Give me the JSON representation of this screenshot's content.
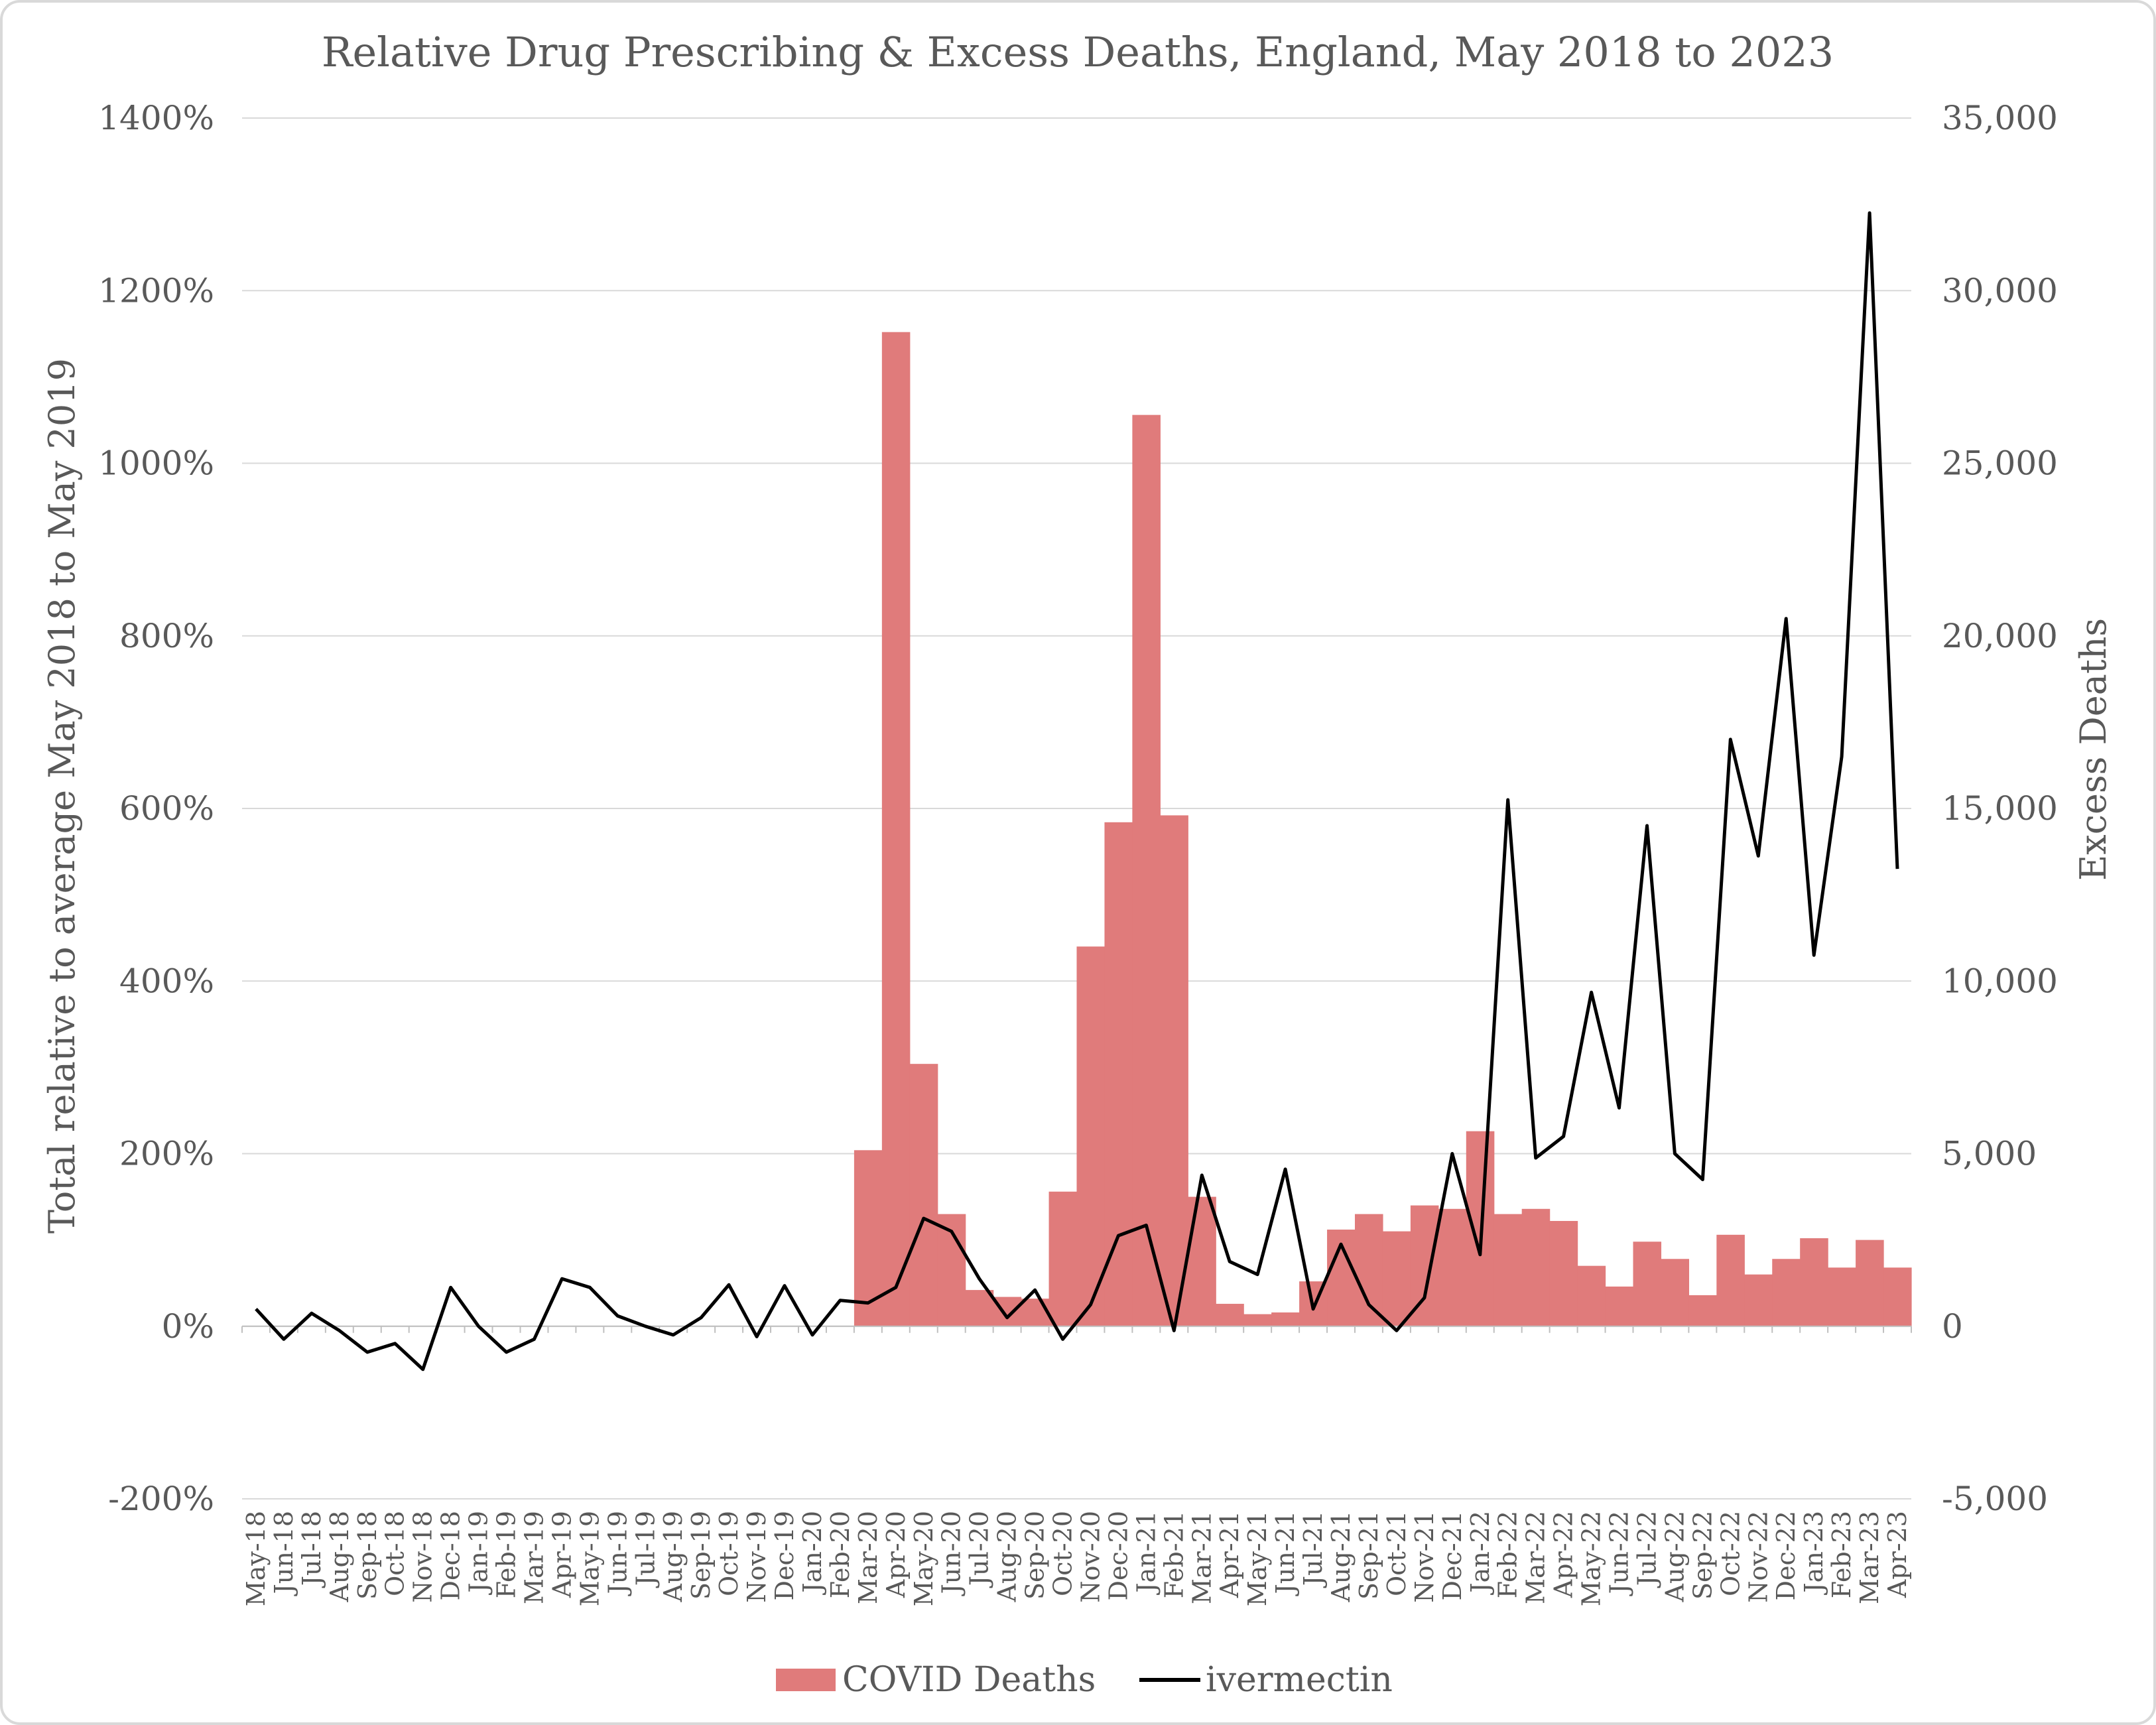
{
  "chart_data": {
    "type": "bar+line",
    "title": "Relative Drug Prescribing & Excess Deaths, England, May 2018 to 2023",
    "ylabel_left": "Total relative to average May 2018 to May 2019",
    "ylabel_right": "Excess Deaths",
    "ylim_left": [
      -200,
      1400
    ],
    "ylim_right": [
      -5000,
      35000
    ],
    "yticks_left": [
      "-200%",
      "0%",
      "200%",
      "400%",
      "600%",
      "800%",
      "1000%",
      "1200%",
      "1400%"
    ],
    "yticks_right": [
      "-5,000",
      "0",
      "5,000",
      "10,000",
      "15,000",
      "20,000",
      "25,000",
      "30,000",
      "35,000"
    ],
    "grid": true,
    "legend_position": "bottom",
    "colors": {
      "bar": "#e07b7b",
      "line": "#000000",
      "grid": "#d9d9d9",
      "text": "#595959",
      "border": "#d9d9d9"
    },
    "categories": [
      "May-18",
      "Jun-18",
      "Jul-18",
      "Aug-18",
      "Sep-18",
      "Oct-18",
      "Nov-18",
      "Dec-18",
      "Jan-19",
      "Feb-19",
      "Mar-19",
      "Apr-19",
      "May-19",
      "Jun-19",
      "Jul-19",
      "Aug-19",
      "Sep-19",
      "Oct-19",
      "Nov-19",
      "Dec-19",
      "Jan-20",
      "Feb-20",
      "Mar-20",
      "Apr-20",
      "May-20",
      "Jun-20",
      "Jul-20",
      "Aug-20",
      "Sep-20",
      "Oct-20",
      "Nov-20",
      "Dec-20",
      "Jan-21",
      "Feb-21",
      "Mar-21",
      "Apr-21",
      "May-21",
      "Jun-21",
      "Jul-21",
      "Aug-21",
      "Sep-21",
      "Oct-21",
      "Nov-21",
      "Dec-21",
      "Jan-22",
      "Feb-22",
      "Mar-22",
      "Apr-22",
      "May-22",
      "Jun-22",
      "Jul-22",
      "Aug-22",
      "Sep-22",
      "Oct-22",
      "Nov-22",
      "Dec-22",
      "Jan-23",
      "Feb-23",
      "Mar-23",
      "Apr-23"
    ],
    "series": [
      {
        "name": "COVID Deaths",
        "type": "bar",
        "axis": "right",
        "values": [
          0,
          0,
          0,
          0,
          0,
          0,
          0,
          0,
          0,
          0,
          0,
          0,
          0,
          0,
          0,
          0,
          0,
          0,
          0,
          0,
          0,
          0,
          5100,
          28800,
          7600,
          3250,
          1050,
          850,
          800,
          3900,
          11000,
          14600,
          26400,
          14800,
          3750,
          650,
          350,
          400,
          1300,
          2800,
          3250,
          2750,
          3500,
          3400,
          5650,
          3250,
          3400,
          3050,
          1750,
          1150,
          2450,
          1950,
          900,
          2650,
          1500,
          1950,
          2550,
          1700,
          2500,
          1700
        ]
      },
      {
        "name": "ivermectin",
        "type": "line",
        "axis": "left",
        "values": [
          20,
          -15,
          15,
          -5,
          -30,
          -20,
          -50,
          45,
          0,
          -30,
          -15,
          55,
          45,
          12,
          0,
          -10,
          10,
          48,
          -12,
          47,
          -10,
          30,
          27,
          45,
          125,
          110,
          55,
          10,
          42,
          -15,
          25,
          105,
          117,
          -5,
          175,
          75,
          60,
          182,
          20,
          95,
          25,
          -5,
          33,
          200,
          83,
          610,
          195,
          220,
          387,
          253,
          580,
          200,
          170,
          680,
          545,
          820,
          430,
          660,
          1290,
          530
        ]
      }
    ]
  }
}
